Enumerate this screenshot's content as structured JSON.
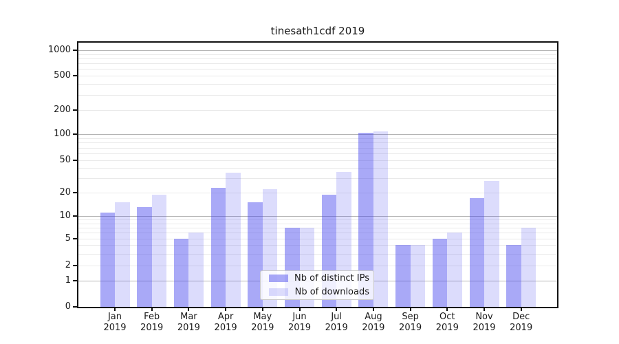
{
  "title": "tinesath1cdf 2019",
  "chart_data": {
    "type": "bar",
    "categories": [
      "Jan",
      "Feb",
      "Mar",
      "Apr",
      "May",
      "Jun",
      "Jul",
      "Aug",
      "Sep",
      "Oct",
      "Nov",
      "Dec"
    ],
    "category_year": "2019",
    "series": [
      {
        "name": "Nb of distinct IPs",
        "color": "rgba(68,68,238,0.46)",
        "values": [
          11,
          13,
          5,
          23,
          15,
          7,
          19,
          105,
          4,
          5,
          17,
          4
        ]
      },
      {
        "name": "Nb of downloads",
        "color": "rgba(68,68,238,0.19)",
        "values": [
          15,
          19,
          6,
          35,
          22,
          7,
          36,
          108,
          4,
          6,
          28,
          7
        ]
      }
    ],
    "title": "tinesath1cdf 2019",
    "xlabel": "",
    "ylabel": "",
    "y_axis": {
      "scale": "symlog",
      "tick_labels": [
        0,
        1,
        2,
        5,
        10,
        20,
        50,
        100,
        200,
        500,
        1000
      ],
      "major_gridlines": [
        1,
        10,
        100,
        1000
      ],
      "minor_gridlines": [
        2,
        3,
        4,
        5,
        6,
        7,
        8,
        9,
        20,
        30,
        40,
        50,
        60,
        70,
        80,
        90,
        200,
        300,
        400,
        500,
        600,
        700,
        800,
        900
      ],
      "range_top": 1300
    },
    "grid": true,
    "legend": {
      "position": "lower-center",
      "items": [
        "Nb of distinct IPs",
        "Nb of downloads"
      ]
    },
    "colors": {
      "bar_dark": "rgba(68,68,238,0.46)",
      "bar_light": "rgba(68,68,238,0.19)",
      "major_grid": "#b4b4b4",
      "minor_grid": "#e9e9e9",
      "spine": "#111111",
      "text": "#1a1a1a"
    }
  }
}
